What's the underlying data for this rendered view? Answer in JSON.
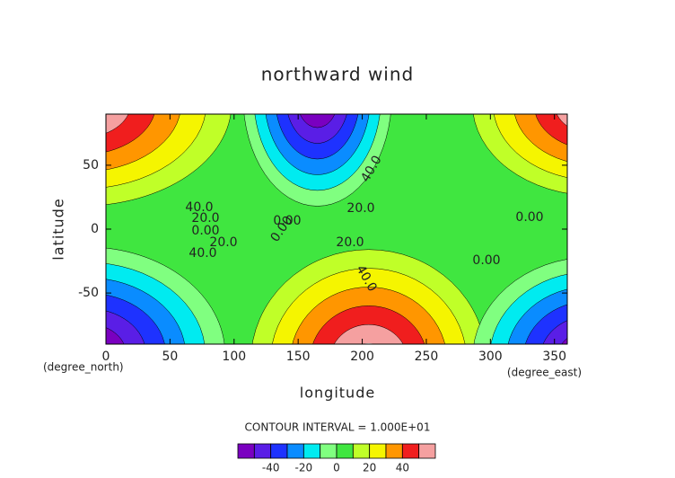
{
  "chart_data": {
    "type": "contour",
    "title": "northward wind",
    "x_label": "longitude",
    "y_label": "latitude",
    "x_units": "(degree_east)",
    "y_units": "(degree_north)",
    "xlim": [
      0,
      360
    ],
    "ylim": [
      -90,
      90
    ],
    "xticks": [
      0,
      50,
      100,
      150,
      200,
      250,
      300,
      350
    ],
    "yticks": [
      -50,
      0,
      50
    ],
    "contour_note": "CONTOUR INTERVAL = 1.000E+01",
    "contour_labels": [
      "40.0",
      "20.0",
      "0.00",
      "20.0",
      "40.0",
      "0.00",
      "0.00",
      "20.0",
      "40.0",
      "20.0",
      "40.0",
      "0.00",
      "0.00"
    ],
    "levels": [
      -60,
      -50,
      -40,
      -30,
      -20,
      -10,
      0,
      10,
      20,
      30,
      40,
      50,
      60
    ],
    "colors": [
      "#7a00c0",
      "#5a1ee6",
      "#1e32ff",
      "#0a8cff",
      "#00ebf0",
      "#80ff80",
      "#40e640",
      "#c0ff28",
      "#f5f500",
      "#ff9600",
      "#f01e1e",
      "#f5a0a0"
    ],
    "colorbar_ticks": [
      -40,
      -20,
      0,
      20,
      40
    ]
  }
}
